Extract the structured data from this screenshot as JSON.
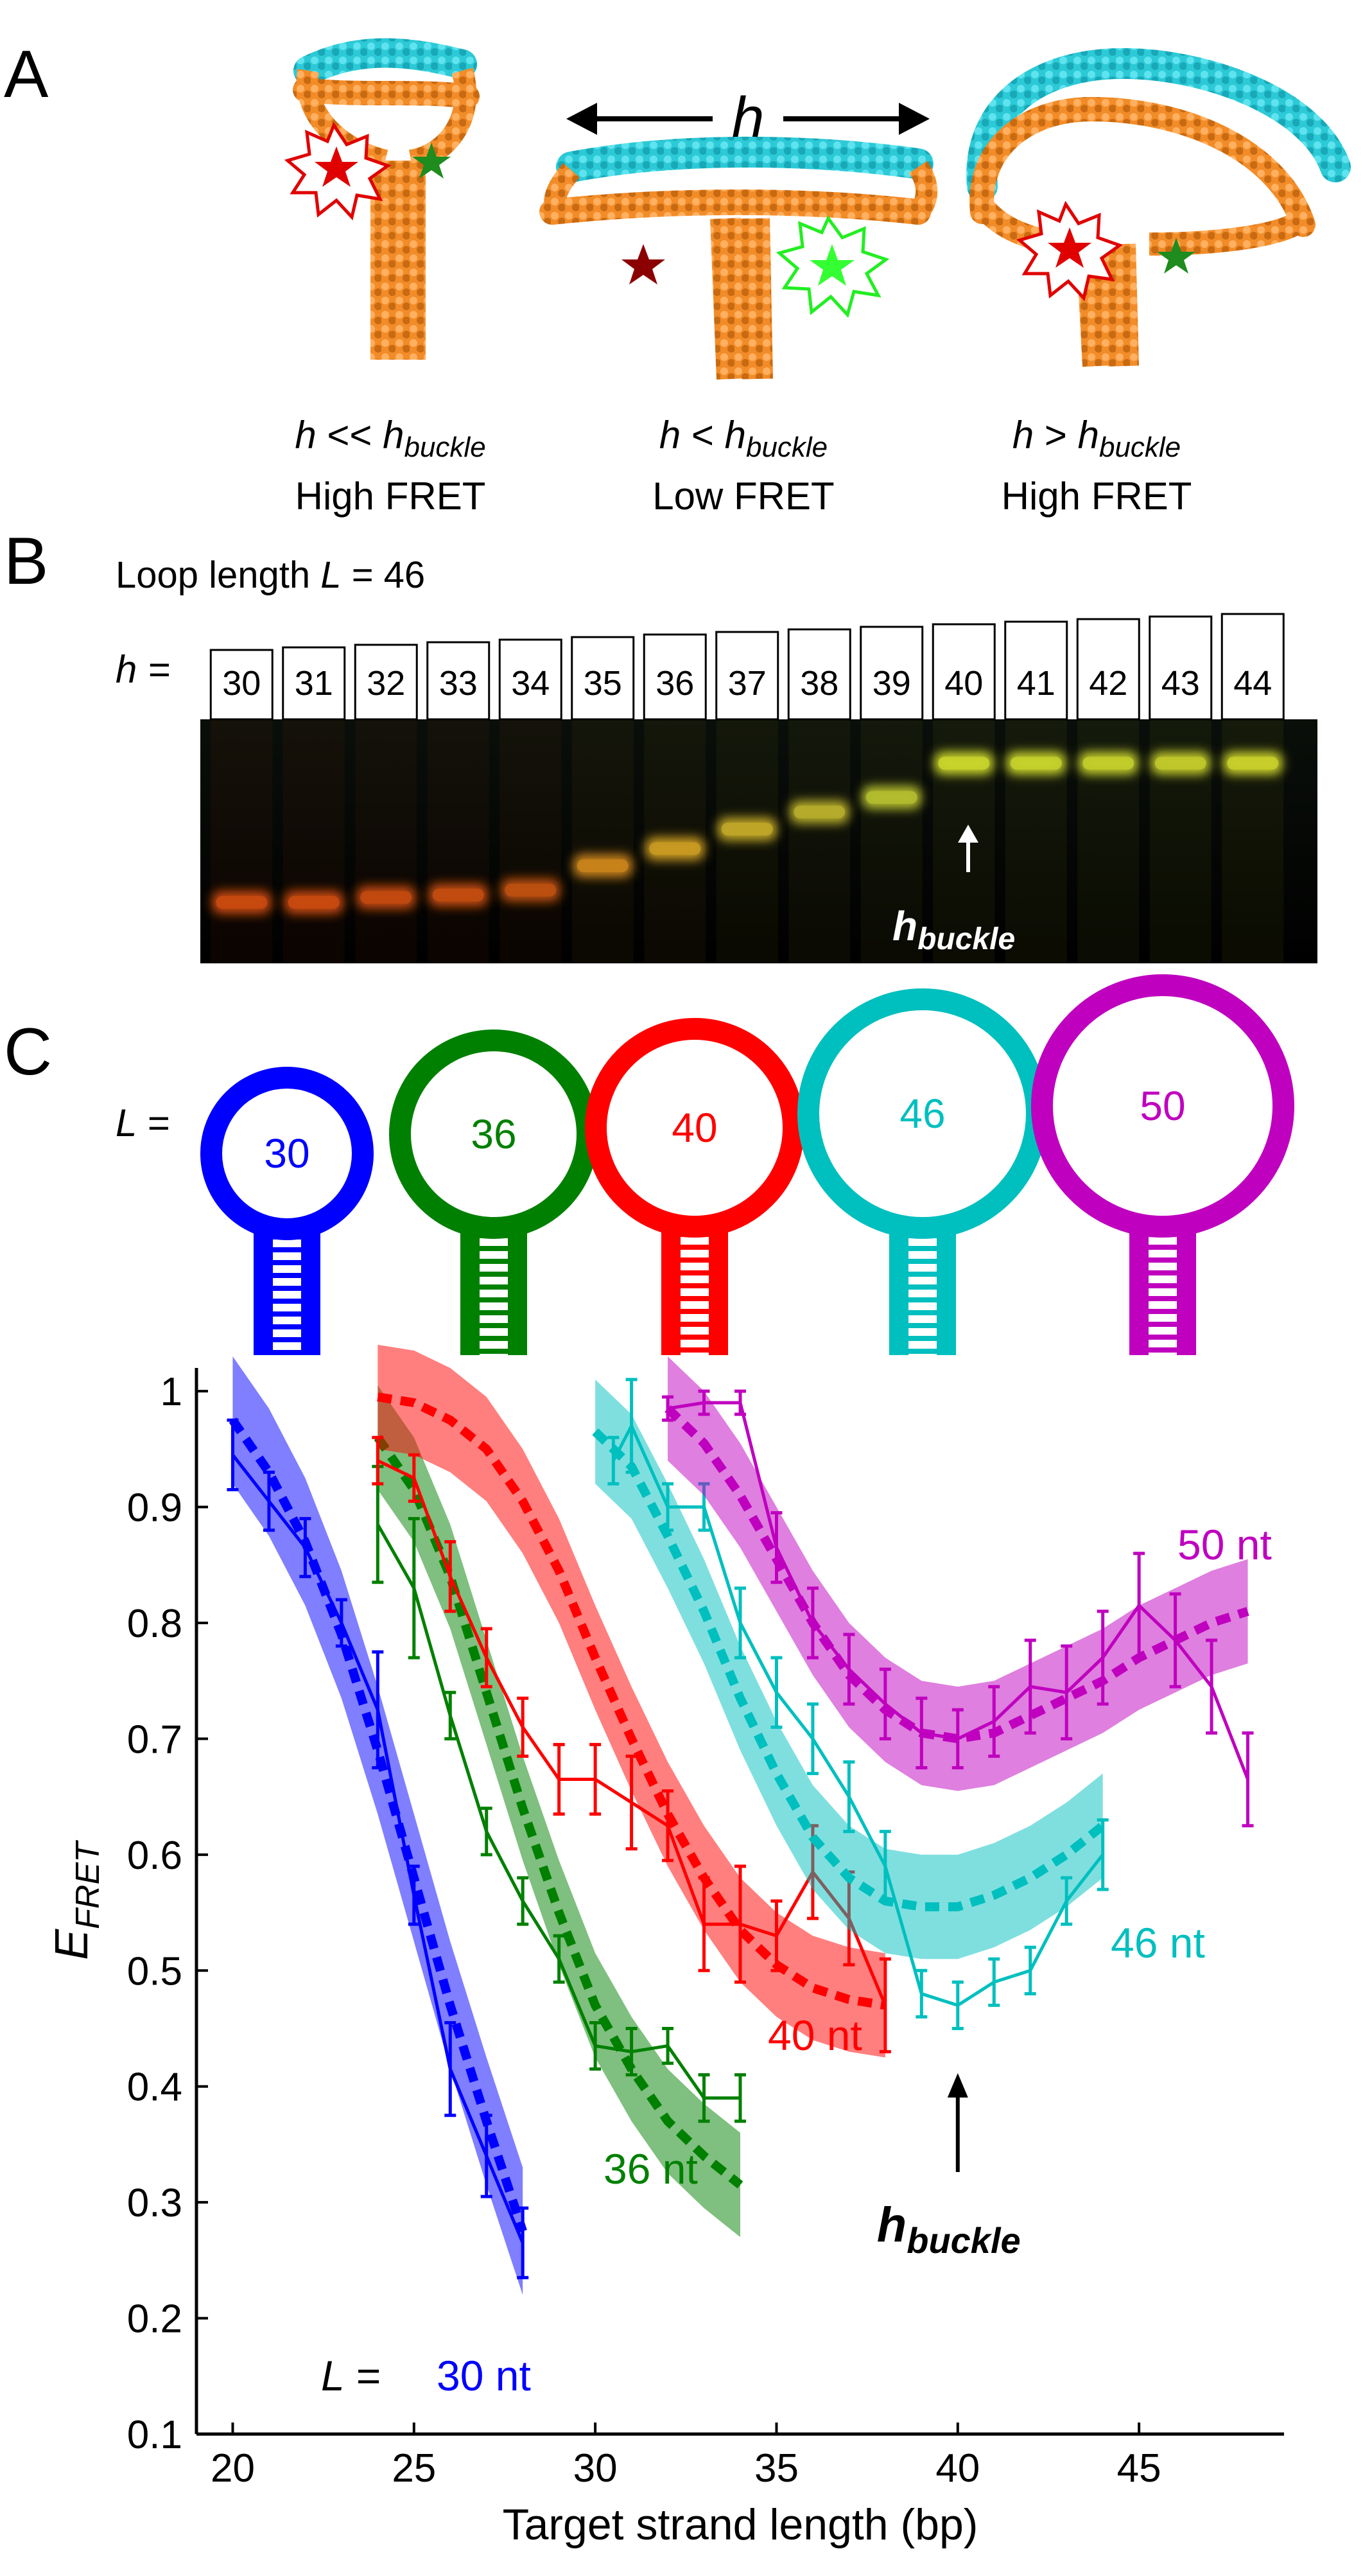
{
  "panelA": {
    "letter": "A",
    "arrow_label": "h",
    "states": [
      {
        "cond_h": "h",
        "cond_op": "<<",
        "cond_sub": "h",
        "cond_subscript": "buckle",
        "fret": "High FRET"
      },
      {
        "cond_h": "h",
        "cond_op": "<",
        "cond_sub": "h",
        "cond_subscript": "buckle",
        "fret": "Low FRET"
      },
      {
        "cond_h": "h",
        "cond_op": ">",
        "cond_sub": "h",
        "cond_subscript": "buckle",
        "fret": "High FRET"
      }
    ],
    "colors": {
      "dna_orange": "#F28C28",
      "dna_cyan": "#2CC9D6",
      "acceptor": "#E00000",
      "donor": "#1E8C1E"
    }
  },
  "panelB": {
    "letter": "B",
    "loop_label": "Loop length",
    "loop_var": "L",
    "loop_value": "= 46",
    "h_label": "h =",
    "lanes": [
      "30",
      "31",
      "32",
      "33",
      "34",
      "35",
      "36",
      "37",
      "38",
      "39",
      "40",
      "41",
      "42",
      "43",
      "44"
    ],
    "band_levels": [
      0.25,
      0.25,
      0.27,
      0.28,
      0.3,
      0.4,
      0.47,
      0.55,
      0.62,
      0.68,
      0.82,
      0.82,
      0.82,
      0.82,
      0.82
    ],
    "band_colors": [
      "#c84a10",
      "#c84a10",
      "#c24a10",
      "#c24c10",
      "#bb5010",
      "#c8821a",
      "#c89a22",
      "#c0a628",
      "#b6ac2c",
      "#b3bc2e",
      "#c8d32c",
      "#c4d02c",
      "#c2cc2c",
      "#c0c82a",
      "#c8cf2a"
    ],
    "marker_label": "h",
    "marker_sub": "buckle"
  },
  "panelC": {
    "letter": "C",
    "L_label": "L =",
    "loops": [
      {
        "label": "30",
        "color": "#0000FF"
      },
      {
        "label": "36",
        "color": "#008000"
      },
      {
        "label": "40",
        "color": "#FF0000"
      },
      {
        "label": "46",
        "color": "#00BFBF"
      },
      {
        "label": "50",
        "color": "#BF00BF"
      }
    ]
  },
  "chart_data": {
    "type": "line",
    "xlabel": "Target strand length (bp)",
    "ylabel_main": "E",
    "ylabel_sub": "FRET",
    "xlim": [
      19,
      49
    ],
    "ylim": [
      0.1,
      1.02
    ],
    "xticks": [
      20,
      25,
      30,
      35,
      40,
      45
    ],
    "yticks": [
      0.1,
      0.2,
      0.3,
      0.4,
      0.5,
      0.6,
      0.7,
      0.8,
      0.9,
      1
    ],
    "series": [
      {
        "name": "30 nt",
        "color": "#0000FF",
        "label_prefix": "L = ",
        "label": "30 nt",
        "exp_x": [
          20,
          21,
          22,
          23,
          24,
          25,
          26,
          27,
          28
        ],
        "exp_y": [
          0.945,
          0.905,
          0.865,
          0.8,
          0.725,
          0.565,
          0.415,
          0.34,
          0.265
        ],
        "exp_err": [
          0.03,
          0.025,
          0.025,
          0.02,
          0.05,
          0.025,
          0.04,
          0.035,
          0.03
        ],
        "fit_x": [
          20,
          21,
          22,
          23,
          24,
          25,
          26,
          27,
          28
        ],
        "fit_y": [
          0.975,
          0.93,
          0.87,
          0.79,
          0.69,
          0.58,
          0.47,
          0.37,
          0.275
        ],
        "band": 0.055
      },
      {
        "name": "36 nt",
        "color": "#008000",
        "label": "36 nt",
        "exp_x": [
          24,
          25,
          26,
          27,
          28,
          29,
          30,
          31,
          32,
          33,
          34
        ],
        "exp_y": [
          0.885,
          0.83,
          0.72,
          0.62,
          0.56,
          0.51,
          0.435,
          0.43,
          0.435,
          0.39,
          0.39
        ],
        "exp_err": [
          0.05,
          0.06,
          0.02,
          0.02,
          0.02,
          0.02,
          0.02,
          0.02,
          0.015,
          0.02,
          0.02
        ],
        "fit_x": [
          24,
          25,
          26,
          27,
          28,
          29,
          30,
          31,
          32,
          33,
          34
        ],
        "fit_y": [
          0.96,
          0.915,
          0.84,
          0.74,
          0.64,
          0.55,
          0.47,
          0.415,
          0.37,
          0.34,
          0.315
        ],
        "band": 0.045
      },
      {
        "name": "40 nt",
        "color": "#FF0000",
        "label": "40 nt",
        "exp_x": [
          24,
          25,
          26,
          27,
          28,
          29,
          30,
          31,
          32,
          33,
          34,
          35,
          36,
          37,
          38
        ],
        "exp_y": [
          0.94,
          0.925,
          0.84,
          0.77,
          0.71,
          0.665,
          0.665,
          0.645,
          0.625,
          0.54,
          0.54,
          0.53,
          0.585,
          0.545,
          0.47
        ],
        "exp_err": [
          0.02,
          0.02,
          0.03,
          0.025,
          0.025,
          0.03,
          0.03,
          0.04,
          0.03,
          0.04,
          0.05,
          0.03,
          0.04,
          0.04,
          0.04
        ],
        "fit_x": [
          24,
          25,
          26,
          27,
          28,
          29,
          30,
          31,
          32,
          33,
          34,
          35,
          36,
          37,
          38
        ],
        "fit_y": [
          0.995,
          0.99,
          0.975,
          0.95,
          0.905,
          0.845,
          0.77,
          0.7,
          0.635,
          0.58,
          0.535,
          0.505,
          0.485,
          0.475,
          0.47
        ],
        "band": 0.045
      },
      {
        "name": "46 nt",
        "color": "#00BFBF",
        "label": "46 nt",
        "exp_x": [
          30.5,
          31,
          32,
          33,
          34,
          35,
          36,
          37,
          38,
          39,
          40,
          41,
          42,
          43,
          44
        ],
        "exp_y": [
          0.94,
          0.97,
          0.9,
          0.9,
          0.8,
          0.74,
          0.7,
          0.65,
          0.59,
          0.48,
          0.47,
          0.49,
          0.5,
          0.56,
          0.6
        ],
        "exp_err": [
          0.02,
          0.04,
          0.02,
          0.02,
          0.03,
          0.03,
          0.03,
          0.03,
          0.03,
          0.02,
          0.02,
          0.02,
          0.02,
          0.02,
          0.03
        ],
        "fit_x": [
          30,
          31,
          32,
          33,
          34,
          35,
          36,
          37,
          38,
          39,
          40,
          41,
          42,
          43,
          44
        ],
        "fit_y": [
          0.965,
          0.935,
          0.875,
          0.81,
          0.735,
          0.67,
          0.615,
          0.58,
          0.56,
          0.555,
          0.555,
          0.565,
          0.58,
          0.6,
          0.625
        ],
        "band": 0.045
      },
      {
        "name": "50 nt",
        "color": "#BF00BF",
        "label": "50 nt",
        "exp_x": [
          32,
          33,
          34,
          35,
          36,
          37,
          38,
          39,
          40,
          41,
          42,
          43,
          44,
          45,
          46,
          47,
          48
        ],
        "exp_y": [
          0.985,
          0.99,
          0.99,
          0.865,
          0.8,
          0.76,
          0.73,
          0.705,
          0.7,
          0.715,
          0.745,
          0.74,
          0.77,
          0.815,
          0.785,
          0.745,
          0.665
        ],
        "exp_err": [
          0.01,
          0.01,
          0.01,
          0.03,
          0.03,
          0.03,
          0.03,
          0.03,
          0.025,
          0.03,
          0.04,
          0.04,
          0.04,
          0.045,
          0.04,
          0.04,
          0.04
        ],
        "fit_x": [
          32,
          33,
          34,
          35,
          36,
          37,
          38,
          39,
          40,
          41,
          42,
          43,
          44,
          45,
          46,
          47,
          48
        ],
        "fit_y": [
          0.985,
          0.955,
          0.91,
          0.855,
          0.8,
          0.755,
          0.725,
          0.705,
          0.7,
          0.705,
          0.72,
          0.735,
          0.75,
          0.77,
          0.785,
          0.8,
          0.81
        ],
        "band": 0.045
      }
    ],
    "annotation": {
      "text": "h",
      "sub": "buckle",
      "x": 40,
      "y": 0.42
    }
  }
}
